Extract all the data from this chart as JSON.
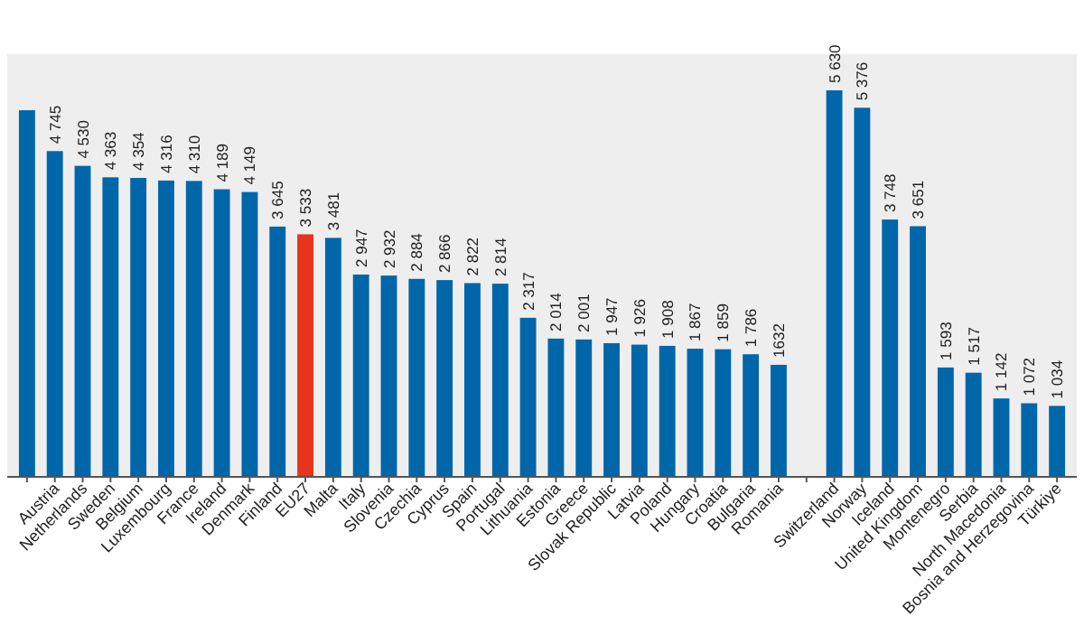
{
  "chart_data": {
    "type": "bar",
    "categories": [
      null,
      "Austria",
      "Netherlands",
      "Sweden",
      "Belgium",
      "Luxembourg",
      "France",
      "Ireland",
      "Denmark",
      "Finland",
      "EU27",
      "Malta",
      "Italy",
      "Slovenia",
      "Czechia",
      "Cyprus",
      "Spain",
      "Portugal",
      "Lithuania",
      "Estonia",
      "Greece",
      "Slovak Republic",
      "Latvia",
      "Poland",
      "Hungary",
      "Croatia",
      "Bulgaria",
      "Romania",
      null,
      "Switzerland",
      "Norway",
      "Iceland",
      "United Kingdom",
      "Montenegro",
      "Serbia",
      "North Macedonia",
      "Bosnia and Herzegovina",
      "Türkiye"
    ],
    "values": [
      5340,
      4745,
      4530,
      4363,
      4354,
      4316,
      4310,
      4189,
      4149,
      3645,
      3533,
      3481,
      2947,
      2932,
      2884,
      2866,
      2822,
      2814,
      2317,
      2014,
      2001,
      1947,
      1926,
      1908,
      1867,
      1859,
      1786,
      1632,
      null,
      5630,
      5376,
      3748,
      3651,
      1593,
      1517,
      1142,
      1072,
      1034
    ],
    "colors": [
      "#0066aa",
      "#0066aa",
      "#0066aa",
      "#0066aa",
      "#0066aa",
      "#0066aa",
      "#0066aa",
      "#0066aa",
      "#0066aa",
      "#0066aa",
      "#e8341c",
      "#0066aa",
      "#0066aa",
      "#0066aa",
      "#0066aa",
      "#0066aa",
      "#0066aa",
      "#0066aa",
      "#0066aa",
      "#0066aa",
      "#0066aa",
      "#0066aa",
      "#0066aa",
      "#0066aa",
      "#0066aa",
      "#0066aa",
      "#0066aa",
      "#0066aa",
      null,
      "#0066aa",
      "#0066aa",
      "#0066aa",
      "#0066aa",
      "#0066aa",
      "#0066aa",
      "#0066aa",
      "#0066aa",
      "#0066aa"
    ],
    "value_labels": [
      null,
      "4 745",
      "4 530",
      "4 363",
      "4 354",
      "4 316",
      "4 310",
      "4 189",
      "4 149",
      "3 645",
      "3 533",
      "3 481",
      "2 947",
      "2 932",
      "2 884",
      "2 866",
      "2 822",
      "2 814",
      "2 317",
      "2 014",
      "2 001",
      "1 947",
      "1 926",
      "1 908",
      "1 867",
      "1 859",
      "1 786",
      "1632",
      null,
      "5 630",
      "5 376",
      "3 748",
      "3 651",
      "1 593",
      "1 517",
      "1 142",
      "1 072",
      "1 034"
    ],
    "grid": false
  }
}
